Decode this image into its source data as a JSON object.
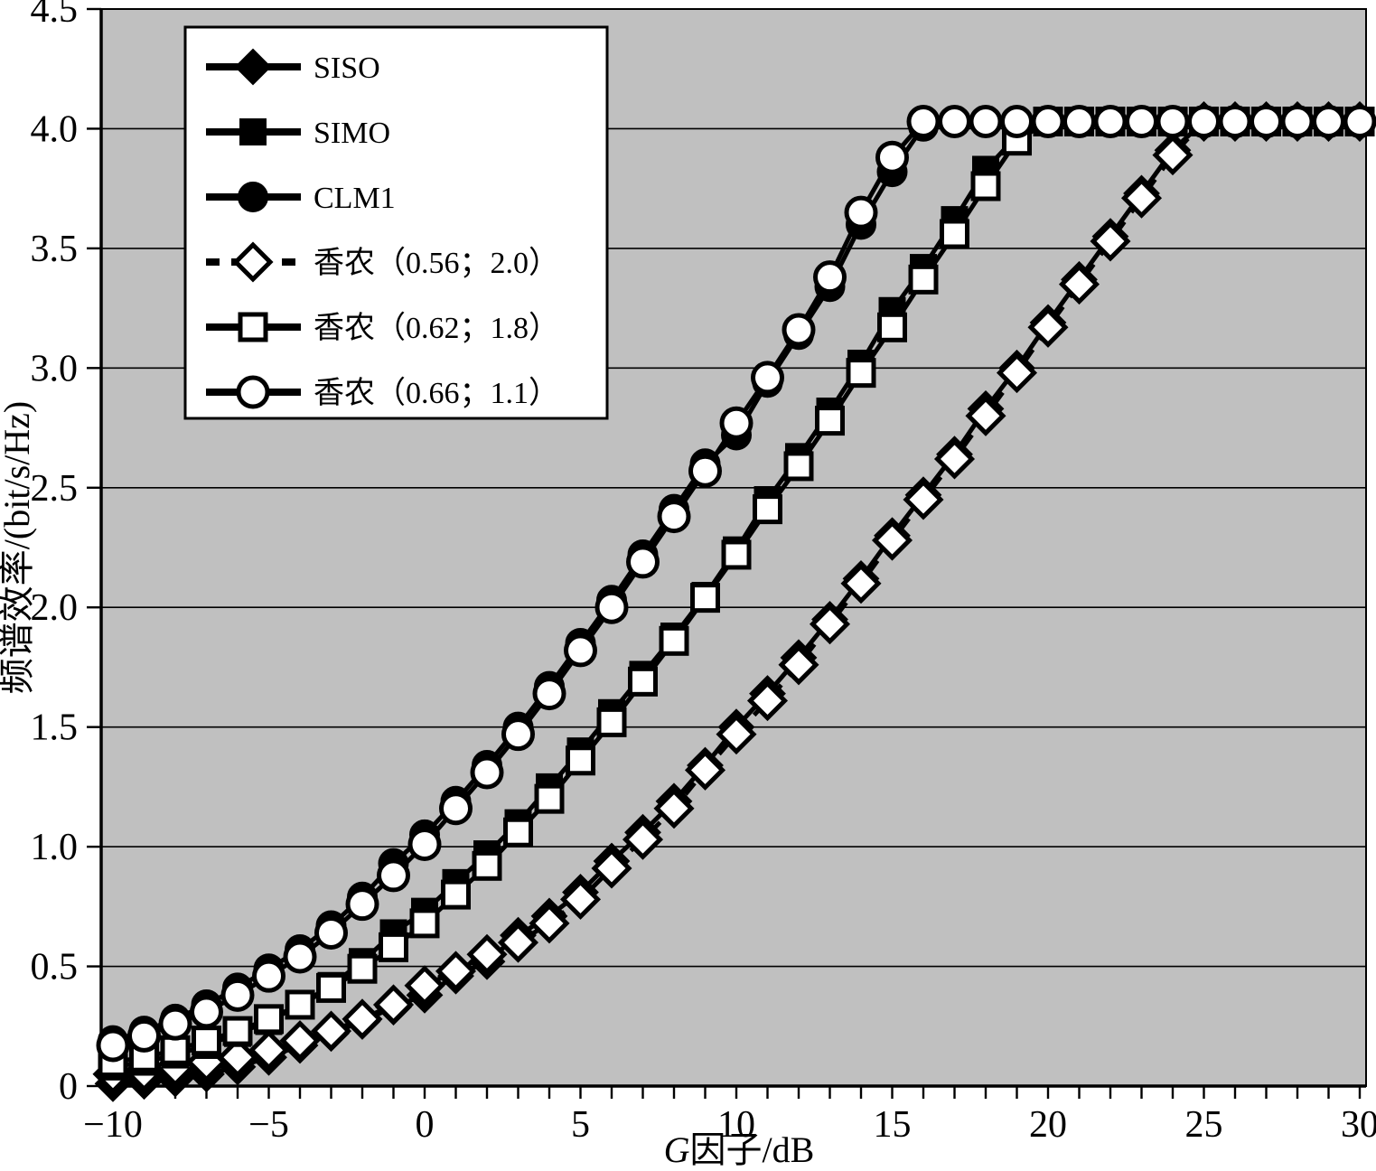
{
  "figure": {
    "background": "#ffffff",
    "plot_background": "#c0c0c0",
    "line_color": "#000000",
    "legend_background": "#ffffff"
  },
  "chart_data": {
    "type": "line",
    "title": "",
    "xlabel": "G因子/dB",
    "xlabel_italic": "G",
    "xlabel_rest": "因子/dB",
    "ylabel": "频谱效率/(bit/s/Hz)",
    "x_start": -10,
    "x_step": 1,
    "xlim": [
      -10.4,
      30.2
    ],
    "ylim": [
      0,
      4.5
    ],
    "x_major_ticks": [
      -10,
      -5,
      0,
      5,
      10,
      15,
      20,
      25,
      30
    ],
    "x_tick_labels": [
      "−10",
      "−5",
      "0",
      "5",
      "10",
      "15",
      "20",
      "25",
      "30"
    ],
    "y_ticks": [
      0,
      0.5,
      1.0,
      1.5,
      2.0,
      2.5,
      3.0,
      3.5,
      4.0,
      4.5
    ],
    "y_tick_labels": [
      "0",
      "0.5",
      "1.0",
      "1.5",
      "2.0",
      "2.5",
      "3.0",
      "3.5",
      "4.0",
      "4.5"
    ],
    "grid": "horizontal",
    "legend_position": "top-left",
    "saturation_level": 4.03,
    "series": [
      {
        "name": "SISO",
        "marker": "diamond",
        "fill": "filled",
        "line": "solid",
        "values": [
          0.01,
          0.02,
          0.03,
          0.05,
          0.08,
          0.12,
          0.17,
          0.22,
          0.27,
          0.33,
          0.38,
          0.46,
          0.52,
          0.63,
          0.71,
          0.81,
          0.94,
          1.06,
          1.19,
          1.34,
          1.5,
          1.64,
          1.79,
          1.95,
          2.12,
          2.3,
          2.47,
          2.64,
          2.83,
          3.0,
          3.19,
          3.37,
          3.55,
          3.73,
          3.91,
          4.03,
          4.03,
          4.03,
          4.03,
          4.03,
          4.03
        ]
      },
      {
        "name": "SIMO",
        "marker": "square",
        "fill": "filled",
        "line": "solid",
        "values": [
          0.08,
          0.1,
          0.13,
          0.17,
          0.22,
          0.27,
          0.34,
          0.42,
          0.52,
          0.64,
          0.73,
          0.85,
          0.97,
          1.1,
          1.25,
          1.4,
          1.56,
          1.72,
          1.88,
          2.05,
          2.24,
          2.45,
          2.63,
          2.82,
          3.02,
          3.24,
          3.42,
          3.62,
          3.83,
          3.97,
          4.03,
          4.03,
          4.03,
          4.03,
          4.03,
          4.03,
          4.03,
          4.03,
          4.03,
          4.03,
          4.03
        ]
      },
      {
        "name": "CLM1",
        "marker": "circle",
        "fill": "filled",
        "line": "solid",
        "values": [
          0.19,
          0.23,
          0.28,
          0.34,
          0.41,
          0.49,
          0.57,
          0.67,
          0.79,
          0.93,
          1.05,
          1.19,
          1.34,
          1.5,
          1.67,
          1.85,
          2.03,
          2.22,
          2.41,
          2.6,
          2.72,
          2.94,
          3.14,
          3.34,
          3.6,
          3.82,
          4.01,
          4.03,
          4.03,
          4.03,
          4.03,
          4.03,
          4.03,
          4.03,
          4.03,
          4.03,
          4.03,
          4.03,
          4.03,
          4.03,
          4.03
        ]
      },
      {
        "name": "香农（0.56；2.0）",
        "marker": "diamond",
        "fill": "open",
        "line": "dashed",
        "values": [
          0.05,
          0.06,
          0.08,
          0.1,
          0.12,
          0.15,
          0.19,
          0.23,
          0.28,
          0.34,
          0.42,
          0.48,
          0.55,
          0.6,
          0.68,
          0.78,
          0.91,
          1.03,
          1.16,
          1.32,
          1.47,
          1.61,
          1.76,
          1.93,
          2.1,
          2.28,
          2.45,
          2.62,
          2.8,
          2.98,
          3.17,
          3.35,
          3.53,
          3.71,
          3.89,
          4.03,
          4.03,
          4.03,
          4.03,
          4.03,
          4.03
        ]
      },
      {
        "name": "香农（0.62；1.8）",
        "marker": "square",
        "fill": "open",
        "line": "solid",
        "values": [
          0.1,
          0.12,
          0.15,
          0.19,
          0.23,
          0.28,
          0.34,
          0.41,
          0.49,
          0.58,
          0.68,
          0.8,
          0.92,
          1.06,
          1.2,
          1.36,
          1.52,
          1.69,
          1.86,
          2.04,
          2.22,
          2.41,
          2.59,
          2.78,
          2.98,
          3.17,
          3.37,
          3.56,
          3.76,
          3.95,
          4.03,
          4.03,
          4.03,
          4.03,
          4.03,
          4.03,
          4.03,
          4.03,
          4.03,
          4.03,
          4.03
        ]
      },
      {
        "name": "香农（0.66；1.1）",
        "marker": "circle",
        "fill": "open",
        "line": "solid",
        "values": [
          0.17,
          0.21,
          0.26,
          0.31,
          0.38,
          0.46,
          0.54,
          0.64,
          0.76,
          0.88,
          1.01,
          1.16,
          1.31,
          1.47,
          1.64,
          1.82,
          2.0,
          2.19,
          2.38,
          2.57,
          2.77,
          2.96,
          3.16,
          3.38,
          3.65,
          3.88,
          4.03,
          4.03,
          4.03,
          4.03,
          4.03,
          4.03,
          4.03,
          4.03,
          4.03,
          4.03,
          4.03,
          4.03,
          4.03,
          4.03,
          4.03
        ]
      }
    ]
  }
}
